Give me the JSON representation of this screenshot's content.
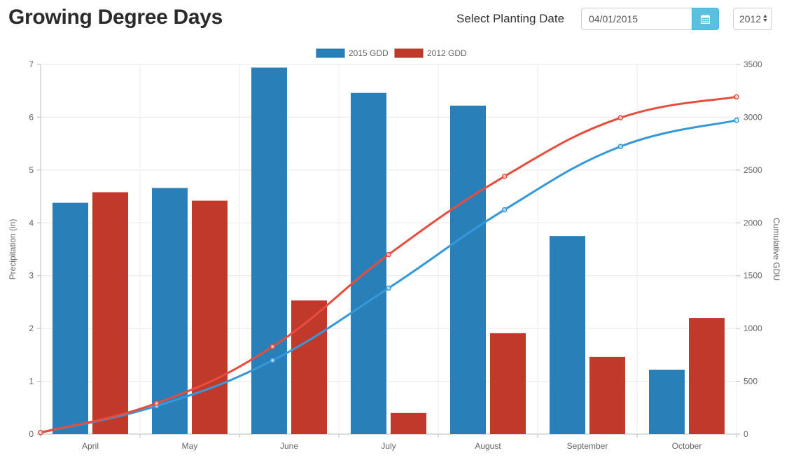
{
  "header": {
    "title": "Growing Degree Days",
    "date_label": "Select Planting Date",
    "date_value": "04/01/2015",
    "calendar_icon": "calendar-icon",
    "year_value": "2012"
  },
  "chart_data": {
    "type": "bar",
    "categories": [
      "April",
      "May",
      "June",
      "July",
      "August",
      "September",
      "October"
    ],
    "series": [
      {
        "name": "2015 GDD",
        "color": "#2980b9",
        "values": [
          4.38,
          4.66,
          6.94,
          6.46,
          6.22,
          3.75,
          1.22
        ]
      },
      {
        "name": "2012 GDD",
        "color": "#c0392b",
        "values": [
          4.58,
          4.42,
          2.53,
          0.4,
          1.91,
          1.46,
          2.2
        ]
      }
    ],
    "lines": [
      {
        "name": "2015 GDD",
        "color": "#3498db",
        "axis": "right",
        "values": [
          14,
          266,
          698,
          1382,
          2124,
          2723,
          2971
        ]
      },
      {
        "name": "2012 GDD",
        "color": "#e74c3c",
        "axis": "right",
        "values": [
          15,
          292,
          828,
          1700,
          2440,
          2995,
          3193
        ]
      }
    ],
    "ylabel": "Precipitation (in)",
    "y2label": "Cumulative GDU",
    "ylim": [
      0,
      7
    ],
    "y2lim": [
      0,
      3500
    ],
    "yticks": [
      "0",
      "1",
      "2",
      "3",
      "4",
      "5",
      "6",
      "7"
    ],
    "y2ticks": [
      "0",
      "500",
      "1000",
      "1500",
      "2000",
      "2500",
      "3000",
      "3500"
    ],
    "legend_position": "top-center",
    "grid": true
  }
}
